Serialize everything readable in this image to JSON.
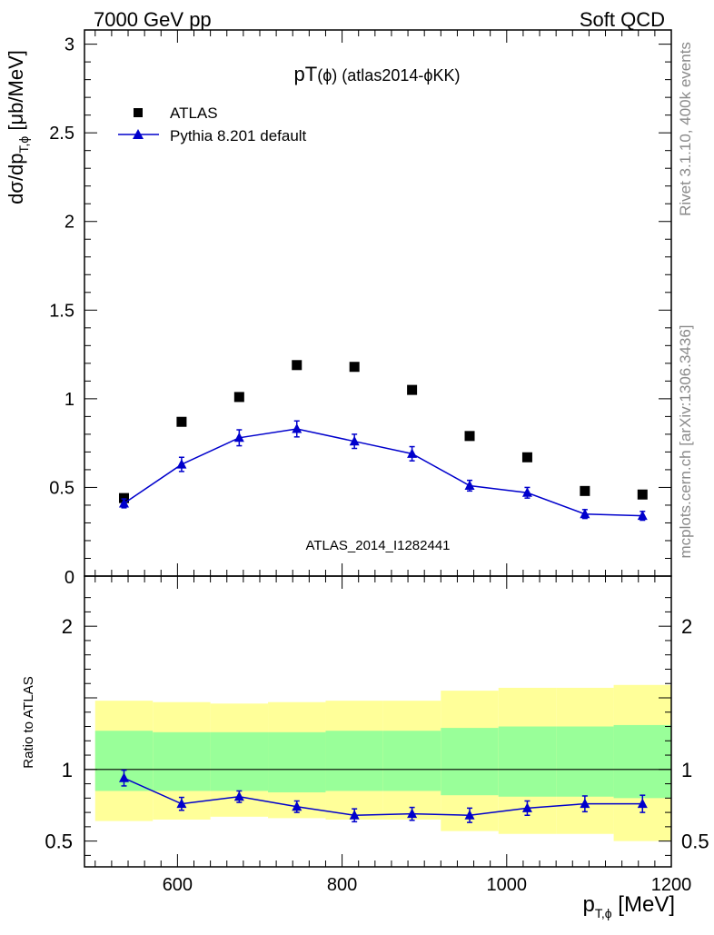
{
  "header": {
    "left": "7000 GeV pp",
    "right": "Soft QCD",
    "plot_title": "pT(ϕ) (atlas2014-ϕKK)",
    "watermark": "ATLAS_2014_I1282441"
  },
  "side_labels": {
    "top": "Rivet 3.1.10,  400k events",
    "bottom": "mcplots.cern.ch [arXiv:1306.3436]"
  },
  "legend": {
    "data_label": "ATLAS",
    "mc_label": "Pythia 8.201 default"
  },
  "axes": {
    "main_ylabel": "dσ/dp_T,ϕ [μb/MeV]",
    "ratio_ylabel": "Ratio to ATLAS",
    "xlabel": "p_T,ϕ [MeV]"
  },
  "colors": {
    "mc": "#0000cc",
    "data": "#000000",
    "band_outer": "#ffff99",
    "band_inner": "#99ff99"
  },
  "chart_data": [
    {
      "type": "scatter",
      "panel": "main",
      "xlim": [
        487,
        1200
      ],
      "ylim": [
        0,
        3.08
      ],
      "y_ticks": [
        0.5,
        1,
        1.5,
        2,
        2.5,
        3
      ],
      "y_tick_labels": [
        "0.5",
        "1",
        "1.5",
        "2",
        "2.5",
        "3"
      ],
      "x": [
        535,
        605,
        675,
        745,
        815,
        885,
        955,
        1025,
        1095,
        1165
      ],
      "series": [
        {
          "name": "ATLAS",
          "values": [
            0.44,
            0.87,
            1.01,
            1.19,
            1.18,
            1.05,
            0.79,
            0.67,
            0.48,
            0.46
          ]
        },
        {
          "name": "Pythia 8.201 default",
          "values": [
            0.41,
            0.63,
            0.78,
            0.83,
            0.76,
            0.69,
            0.51,
            0.47,
            0.35,
            0.34
          ],
          "errors": [
            0.025,
            0.04,
            0.045,
            0.045,
            0.04,
            0.04,
            0.03,
            0.03,
            0.025,
            0.025
          ]
        }
      ]
    },
    {
      "type": "line",
      "panel": "ratio",
      "xlim": [
        487,
        1200
      ],
      "ylim": [
        0.32,
        2.35
      ],
      "y_ticks": [
        0.5,
        1,
        2
      ],
      "y_tick_labels": [
        "0.5",
        "1",
        "2"
      ],
      "x_ticks": [
        600,
        800,
        1000,
        1200
      ],
      "x_tick_labels": [
        "600",
        "800",
        "1000",
        "1200"
      ],
      "bands": [
        {
          "x0": 500,
          "x1": 570,
          "outer": [
            0.64,
            1.48
          ],
          "inner": [
            0.85,
            1.27
          ]
        },
        {
          "x0": 570,
          "x1": 640,
          "outer": [
            0.65,
            1.47
          ],
          "inner": [
            0.85,
            1.26
          ]
        },
        {
          "x0": 640,
          "x1": 710,
          "outer": [
            0.67,
            1.46
          ],
          "inner": [
            0.85,
            1.26
          ]
        },
        {
          "x0": 710,
          "x1": 780,
          "outer": [
            0.66,
            1.47
          ],
          "inner": [
            0.84,
            1.26
          ]
        },
        {
          "x0": 780,
          "x1": 850,
          "outer": [
            0.65,
            1.48
          ],
          "inner": [
            0.85,
            1.27
          ]
        },
        {
          "x0": 850,
          "x1": 920,
          "outer": [
            0.65,
            1.48
          ],
          "inner": [
            0.85,
            1.27
          ]
        },
        {
          "x0": 920,
          "x1": 990,
          "outer": [
            0.57,
            1.55
          ],
          "inner": [
            0.82,
            1.29
          ]
        },
        {
          "x0": 990,
          "x1": 1060,
          "outer": [
            0.55,
            1.57
          ],
          "inner": [
            0.81,
            1.3
          ]
        },
        {
          "x0": 1060,
          "x1": 1130,
          "outer": [
            0.55,
            1.57
          ],
          "inner": [
            0.81,
            1.3
          ]
        },
        {
          "x0": 1130,
          "x1": 1200,
          "outer": [
            0.5,
            1.59
          ],
          "inner": [
            0.8,
            1.31
          ]
        }
      ],
      "x": [
        535,
        605,
        675,
        745,
        815,
        885,
        955,
        1025,
        1095,
        1165
      ],
      "series": [
        {
          "name": "Pythia 8.201 default",
          "values": [
            0.94,
            0.76,
            0.81,
            0.74,
            0.68,
            0.69,
            0.68,
            0.73,
            0.76,
            0.76
          ],
          "errors": [
            0.055,
            0.045,
            0.04,
            0.04,
            0.045,
            0.045,
            0.05,
            0.05,
            0.055,
            0.06
          ]
        }
      ]
    }
  ]
}
